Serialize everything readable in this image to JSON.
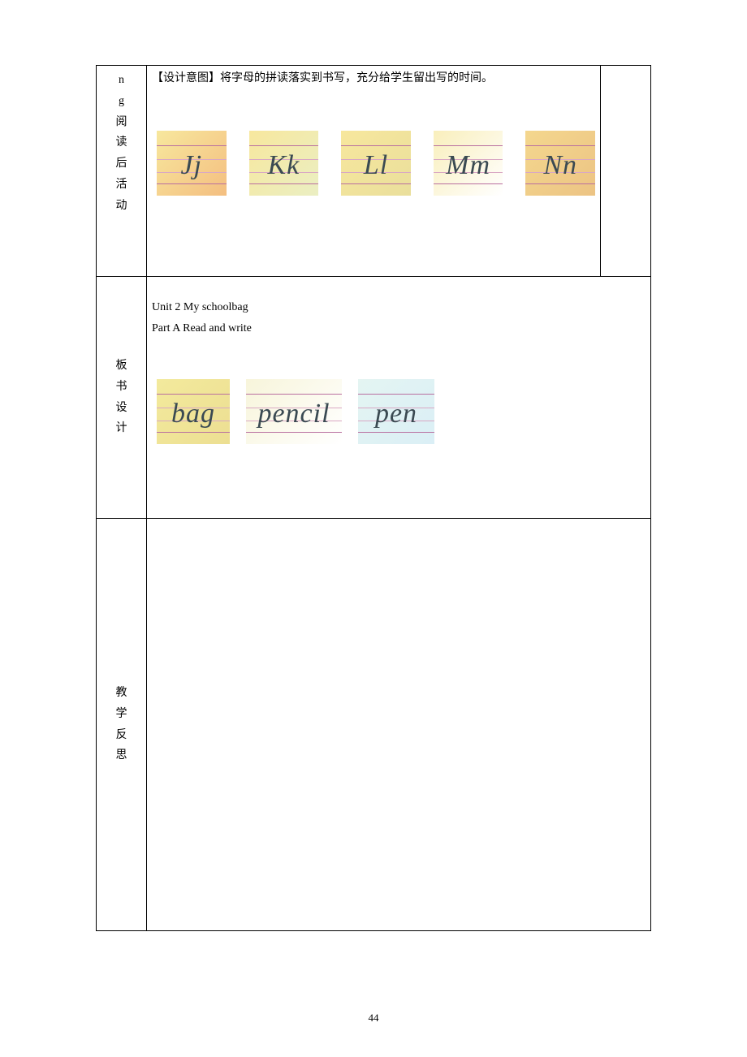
{
  "row1": {
    "label_chars": [
      "n",
      "g",
      "阅",
      "读",
      "后",
      "活",
      "动"
    ],
    "design_intent": "【设计意图】将字母的拼读落实到书写，充分给学生留出写的时间。",
    "letters": [
      {
        "text": "Jj",
        "bg_colors": [
          "#f6e38c",
          "#f2b36a"
        ]
      },
      {
        "text": "Kk",
        "bg_colors": [
          "#f6e38c",
          "#e7ecb8"
        ]
      },
      {
        "text": "Ll",
        "bg_colors": [
          "#f6e38c",
          "#e6d98a"
        ]
      },
      {
        "text": "Mm",
        "bg_colors": [
          "#f8ecb0",
          "#ffffff"
        ]
      },
      {
        "text": "Nn",
        "bg_colors": [
          "#f2d07a",
          "#e9b96e"
        ]
      }
    ],
    "line_color_outer": "#b96fa0",
    "line_color_inner": "#d9a8c4",
    "text_color": "#3a4a52"
  },
  "row2": {
    "label_chars": [
      "板",
      "书",
      "设",
      "计"
    ],
    "header_line1": "Unit 2    My schoolbag",
    "header_line2": "Part    A    Read and write",
    "words": [
      {
        "text": "bag",
        "class": "w-bag",
        "bg_colors": [
          "#f1e68b",
          "#e9d97f"
        ]
      },
      {
        "text": "pencil",
        "class": "w-pencil",
        "bg_colors": [
          "#f6f3d4",
          "#ffffff"
        ]
      },
      {
        "text": "pen",
        "class": "w-pen",
        "bg_colors": [
          "#dff3f0",
          "#d4ecf4"
        ]
      }
    ]
  },
  "row3": {
    "label_chars": [
      "教",
      "学",
      "反",
      "思"
    ]
  },
  "page_number": "44"
}
